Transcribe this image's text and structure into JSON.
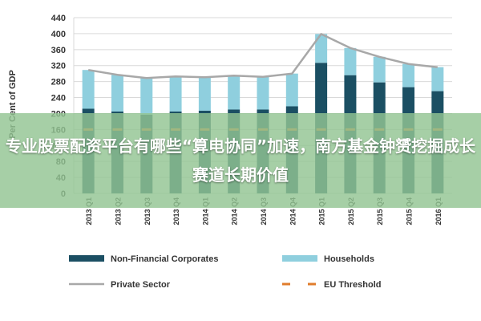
{
  "banner": {
    "text": "专业股票配资平台有哪些“算电协同”加速，南方基金钟赟挖掘成长赛道长期价值"
  },
  "chart_data": {
    "type": "bar",
    "stacked": true,
    "ylabel": "Per Cent of GDP",
    "ylim": [
      0,
      440
    ],
    "yticks": [
      0,
      40,
      80,
      120,
      160,
      200,
      240,
      280,
      320,
      360,
      400,
      440
    ],
    "grid": true,
    "legend_position": "bottom",
    "categories": [
      "2013 Q1",
      "2013 Q2",
      "2013 Q3",
      "2013 Q4",
      "2014 Q1",
      "2014 Q2",
      "2014 Q3",
      "2014 Q4",
      "2015 Q1",
      "2015 Q2",
      "2015 Q3",
      "2015 Q4",
      "2016 Q1"
    ],
    "series": [
      {
        "name": "Non-Financial Corporates",
        "kind": "bar",
        "color": "#1b4f63",
        "values": [
          212,
          205,
          197,
          205,
          207,
          210,
          210,
          218,
          327,
          296,
          278,
          266,
          256
        ]
      },
      {
        "name": "Households",
        "kind": "bar",
        "color": "#8fcfde",
        "values": [
          97,
          92,
          92,
          88,
          84,
          85,
          82,
          82,
          72,
          68,
          64,
          58,
          60
        ]
      },
      {
        "name": "Private Sector",
        "kind": "line",
        "color": "#a8a8a8",
        "values": [
          309,
          297,
          289,
          293,
          291,
          295,
          292,
          300,
          399,
          364,
          342,
          324,
          316
        ]
      },
      {
        "name": "EU Threshold",
        "kind": "dash",
        "color": "#e07c2c",
        "values": [
          160,
          160,
          160,
          160,
          160,
          160,
          160,
          160,
          160,
          160,
          160,
          160,
          160
        ]
      }
    ]
  }
}
